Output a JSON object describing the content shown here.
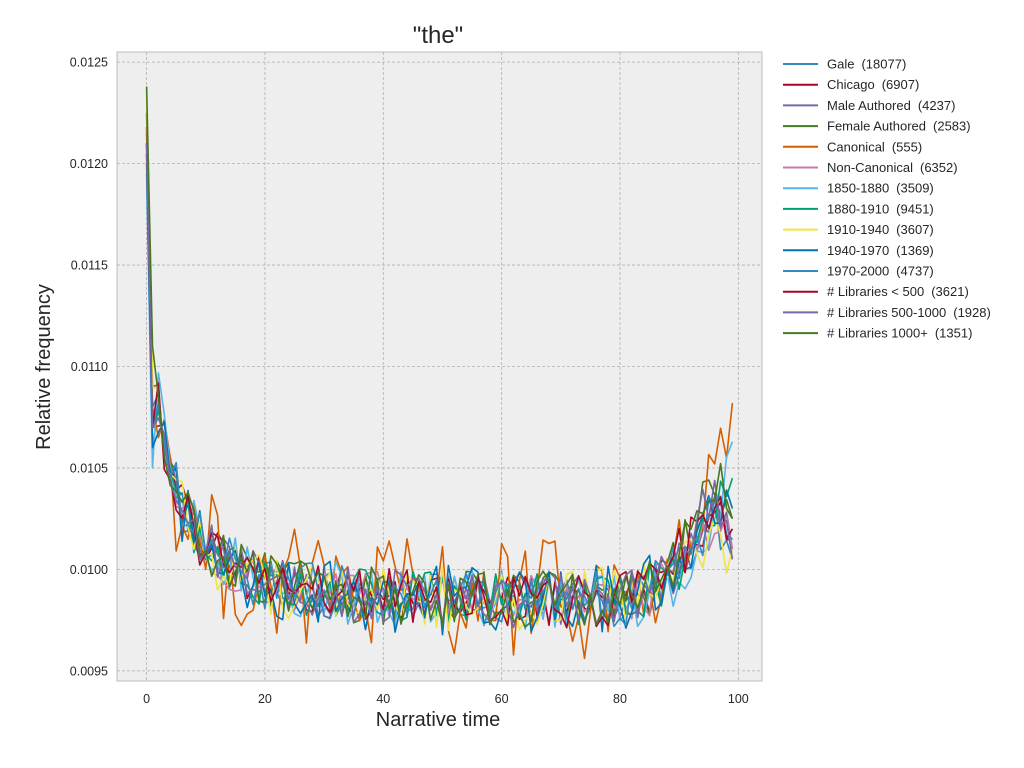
{
  "chart_data": {
    "type": "line",
    "title": "\"the\"",
    "xlabel": "Narrative time",
    "ylabel": "Relative frequency",
    "xlim": [
      -5,
      104
    ],
    "ylim": [
      0.00945,
      0.01255
    ],
    "xticks": [
      0,
      20,
      40,
      60,
      80,
      100
    ],
    "yticks": [
      0.0095,
      0.01,
      0.0105,
      0.011,
      0.0115,
      0.012,
      0.0125
    ],
    "ytick_labels": [
      "0.0095",
      "0.0100",
      "0.0105",
      "0.0110",
      "0.0115",
      "0.0120",
      "0.0125"
    ],
    "grid": true,
    "legend_position": "outside-right",
    "series": [
      {
        "name": "Gale",
        "count": "(18077)",
        "color": "#348abd",
        "y0": 0.01215,
        "y1": 0.0108,
        "peak": 0.0103,
        "end": 0.01005,
        "amp": 0.00012
      },
      {
        "name": "Chicago",
        "count": "(6907)",
        "color": "#a60628",
        "y0": 0.01218,
        "y1": 0.0107,
        "peak": 0.01035,
        "end": 0.01015,
        "amp": 0.00013
      },
      {
        "name": "Male Authored",
        "count": "(4237)",
        "color": "#7a68a6",
        "y0": 0.01205,
        "y1": 0.0106,
        "peak": 0.0103,
        "end": 0.0101,
        "amp": 0.00014
      },
      {
        "name": "Female Authored",
        "count": "(2583)",
        "color": "#467821",
        "y0": 0.01225,
        "y1": 0.0109,
        "peak": 0.01045,
        "end": 0.01025,
        "amp": 0.00014
      },
      {
        "name": "Canonical",
        "count": "(555)",
        "color": "#d55e00",
        "y0": 0.01205,
        "y1": 0.0108,
        "peak": 0.0104,
        "end": 0.01082,
        "amp": 0.0003
      },
      {
        "name": "Non-Canonical",
        "count": "(6352)",
        "color": "#cc79a7",
        "y0": 0.0121,
        "y1": 0.0107,
        "peak": 0.01025,
        "end": 0.0101,
        "amp": 0.00012
      },
      {
        "name": "1850-1880",
        "count": "(3509)",
        "color": "#56b4e9",
        "y0": 0.01195,
        "y1": 0.0105,
        "peak": 0.01025,
        "end": 0.01063,
        "amp": 0.00016
      },
      {
        "name": "1880-1910",
        "count": "(9451)",
        "color": "#009e73",
        "y0": 0.0121,
        "y1": 0.0107,
        "peak": 0.0103,
        "end": 0.01045,
        "amp": 0.00013
      },
      {
        "name": "1910-1940",
        "count": "(3607)",
        "color": "#f0e442",
        "y0": 0.01235,
        "y1": 0.0109,
        "peak": 0.0102,
        "end": 0.0101,
        "amp": 0.00016
      },
      {
        "name": "1940-1970",
        "count": "(1369)",
        "color": "#0072b2",
        "y0": 0.012,
        "y1": 0.0106,
        "peak": 0.01035,
        "end": 0.0103,
        "amp": 0.00018
      },
      {
        "name": "1970-2000",
        "count": "(4737)",
        "color": "#348abd",
        "y0": 0.01205,
        "y1": 0.0107,
        "peak": 0.0103,
        "end": 0.01015,
        "amp": 0.00014
      },
      {
        "name": "# Libraries < 500",
        "count": "(3621)",
        "color": "#a60628",
        "y0": 0.0121,
        "y1": 0.0107,
        "peak": 0.0104,
        "end": 0.0102,
        "amp": 0.00014
      },
      {
        "name": "# Libraries 500-1000",
        "count": "(1928)",
        "color": "#7a68a6",
        "y0": 0.0121,
        "y1": 0.0107,
        "peak": 0.0104,
        "end": 0.01005,
        "amp": 0.00014
      },
      {
        "name": "# Libraries 1000+",
        "count": "(1351)",
        "color": "#467821",
        "y0": 0.01238,
        "y1": 0.0111,
        "peak": 0.01045,
        "end": 0.01025,
        "amp": 0.00015
      }
    ]
  }
}
